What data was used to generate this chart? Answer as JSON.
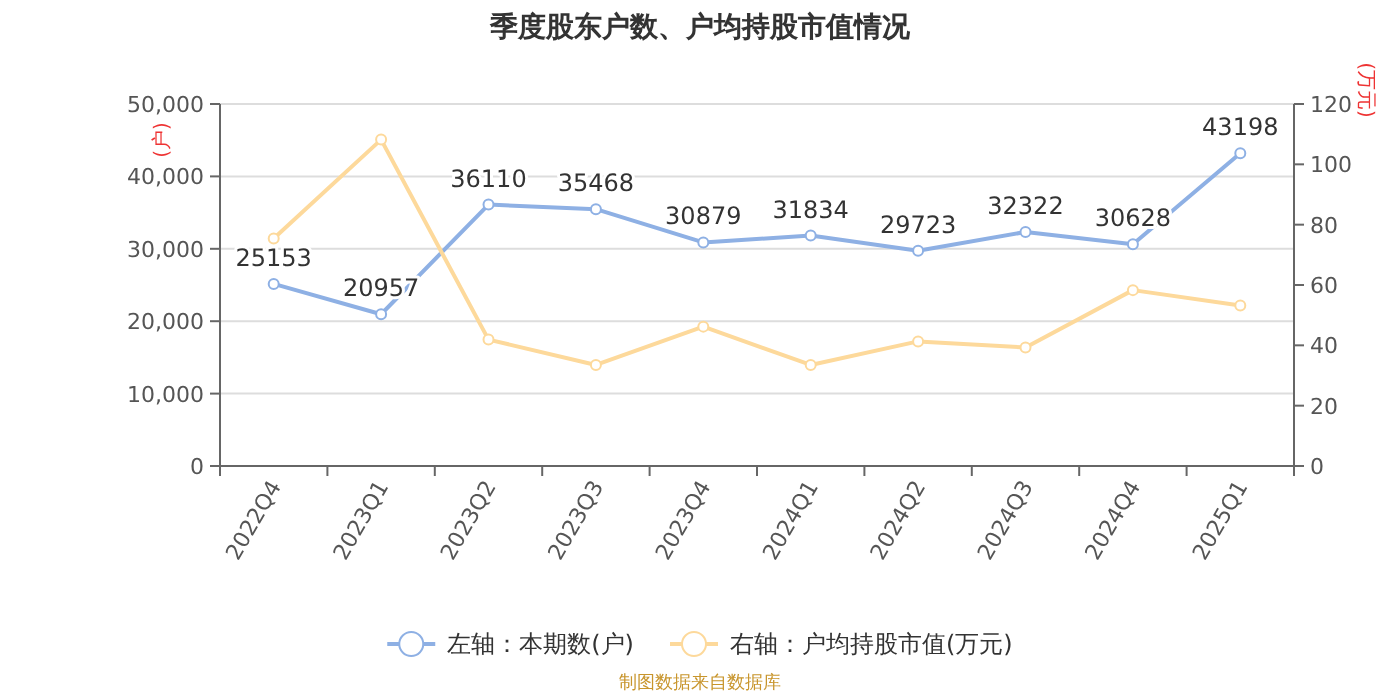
{
  "chart_data": {
    "type": "line",
    "title": "季度股东户数、户均持股市值情况",
    "categories": [
      "2022Q4",
      "2023Q1",
      "2023Q2",
      "2023Q3",
      "2023Q4",
      "2024Q1",
      "2024Q2",
      "2024Q3",
      "2024Q4",
      "2025Q1"
    ],
    "series": [
      {
        "name": "左轴：本期数(户)",
        "color": "#8eb0e4",
        "values": [
          25153,
          20957,
          36110,
          35468,
          30879,
          31834,
          29723,
          32322,
          30628,
          43198
        ],
        "value_labels": [
          "25153",
          "20957",
          "36110",
          "35468",
          "30879",
          "31834",
          "29723",
          "32322",
          "30628",
          "43198"
        ]
      },
      {
        "name": "右轴：户均持股市值(万元)",
        "color": "#fdd99b",
        "axis": "y2",
        "values": [
          75.4,
          108.2,
          41.9,
          33.5,
          46.2,
          33.5,
          41.3,
          39.3,
          58.3,
          53.2
        ]
      }
    ],
    "ylabel": "(户)",
    "y2label": "(万元)",
    "ylim": [
      0,
      50000
    ],
    "yticks": [
      {
        "value": 0,
        "label": "0"
      },
      {
        "value": 10000,
        "label": "10,000"
      },
      {
        "value": 20000,
        "label": "20,000"
      },
      {
        "value": 30000,
        "label": "30,000"
      },
      {
        "value": 40000,
        "label": "40,000"
      },
      {
        "value": 50000,
        "label": "50,000"
      }
    ],
    "y2lim": [
      0,
      120
    ],
    "y2ticks": [
      0,
      20,
      40,
      60,
      80,
      100,
      120
    ],
    "grid": "y",
    "legend": "bottom",
    "marker": "circle",
    "line_style": "solid",
    "annotations": [
      "制图数据来自数据库"
    ]
  }
}
